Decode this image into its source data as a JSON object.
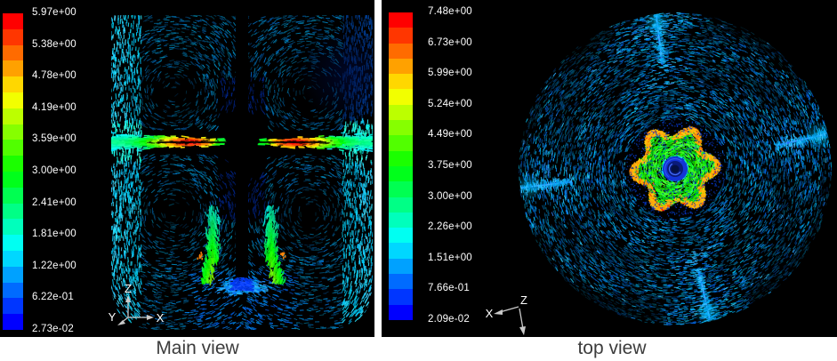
{
  "figure": {
    "background": "#ffffff",
    "panel_background": "#000000"
  },
  "colors": {
    "colorbar_top": "#ff0000",
    "colorbar_bottom": "#0000ff",
    "tick_text": "#ffffff",
    "caption_text": "#3c3c3c",
    "axis_line": "#c9c9c9",
    "wall_cyan": "#00d8ee",
    "baffle_blue": "#2565ff",
    "field_teal": "#00798c"
  },
  "left_panel": {
    "caption": "Main view",
    "colorbar_labels": [
      "5.97e+00",
      "5.38e+00",
      "4.78e+00",
      "4.19e+00",
      "3.59e+00",
      "3.00e+00",
      "2.41e+00",
      "1.81e+00",
      "1.22e+00",
      "6.22e-01",
      "2.73e-02"
    ],
    "axis": {
      "up": "Z",
      "right": "X",
      "diag": "Y"
    }
  },
  "right_panel": {
    "caption": "top view",
    "colorbar_labels": [
      "7.48e+00",
      "6.73e+00",
      "5.99e+00",
      "5.24e+00",
      "4.49e+00",
      "3.75e+00",
      "3.00e+00",
      "2.26e+00",
      "1.51e+00",
      "7.66e-01",
      "2.09e-02"
    ],
    "axis": {
      "left": "X",
      "top": "Z"
    }
  },
  "chart_data": [
    {
      "type": "heatmap",
      "subtype": "cfd-velocity-vector-field",
      "title": "Main view",
      "view": "vertical mid-plane section of a baffled stirred tank with central shaft and radial impeller",
      "colorbar": {
        "position": "left",
        "orientation": "vertical",
        "bands": 20,
        "colormap": "rainbow (red = high, blue = low)",
        "tick_labels": [
          "5.97e+00",
          "5.38e+00",
          "4.78e+00",
          "4.19e+00",
          "3.59e+00",
          "3.00e+00",
          "2.41e+00",
          "1.81e+00",
          "1.22e+00",
          "6.22e-01",
          "2.73e-02"
        ],
        "tick_values": [
          5.97,
          5.38,
          4.78,
          4.19,
          3.59,
          3.0,
          2.41,
          1.81,
          1.22,
          0.622,
          0.0273
        ],
        "min": 0.0273,
        "max": 5.97
      },
      "axis_triad": [
        "Z up",
        "X right",
        "Y lower-left"
      ],
      "features": [
        "red/orange radial impeller jets (~5-6) at mid-height on both sides of black hub",
        "four toroidal circulation loops with dark vortex cores above and below the jets",
        "bright cyan boundary layers along both side walls (~1-2)",
        "green-yellow downward plumes beneath the hub near the rounded tank bottom (~3-4)",
        "light blue low-velocity pool at bottom center below the shaft tip (~1)"
      ]
    },
    {
      "type": "heatmap",
      "subtype": "cfd-velocity-vector-field",
      "title": "top view",
      "view": "horizontal plan section of the same tank at impeller level",
      "colorbar": {
        "position": "left",
        "orientation": "vertical",
        "bands": 20,
        "colormap": "rainbow (red = high, blue = low)",
        "tick_labels": [
          "7.48e+00",
          "6.73e+00",
          "5.99e+00",
          "5.24e+00",
          "4.49e+00",
          "3.75e+00",
          "3.00e+00",
          "2.26e+00",
          "1.51e+00",
          "7.66e-01",
          "2.09e-02"
        ],
        "tick_values": [
          7.48,
          6.73,
          5.99,
          5.24,
          4.49,
          3.75,
          3.0,
          2.26,
          1.51,
          0.766,
          0.0209
        ],
        "min": 0.0209,
        "max": 7.48
      },
      "axis_triad": [
        "X upper-left",
        "Z at origin with downward arrow"
      ],
      "features": [
        "central impeller swirl: gold/orange lobed rim (~5-7), green spiral body (~3-4), dark blue core (~0-1)",
        "tangential dark-teal vector field filling the circular tank cross-section",
        "four bright blue radial baffle wakes near 12, 3, 6 and 9 o'clock (offset ~10 deg)"
      ]
    }
  ]
}
